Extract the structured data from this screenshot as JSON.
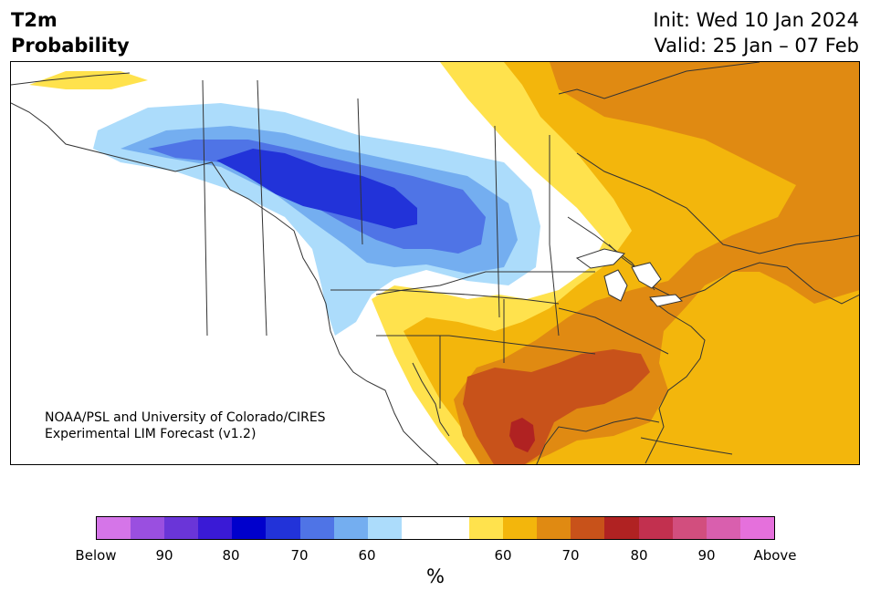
{
  "title": {
    "line1": "T2m",
    "line2": "Probability"
  },
  "init": {
    "line1": "Init: Wed 10 Jan 2024",
    "line2": "Valid: 25 Jan – 07 Feb"
  },
  "credit": {
    "line1": "NOAA/PSL and University of Colorado/CIRES",
    "line2": "Experimental LIM Forecast (v1.2)"
  },
  "colorbar": {
    "unit": "%",
    "colors": [
      "#d575e8",
      "#9a4fe0",
      "#6a35d8",
      "#3a1ad6",
      "#0000cc",
      "#2233d9",
      "#4f74e6",
      "#74aef0",
      "#acdcfb",
      "#ffffff",
      "#ffffff",
      "#ffe24d",
      "#f3b60c",
      "#e08a12",
      "#c8521a",
      "#b02222",
      "#c2304f",
      "#d24e7e",
      "#d95fae",
      "#e570dc"
    ],
    "tick_labels": [
      "Below",
      "90",
      "80",
      "70",
      "60",
      "60",
      "70",
      "80",
      "90",
      "Above"
    ]
  },
  "map": {
    "categories": {
      "below_60": "#acdcfb",
      "below_70": "#74aef0",
      "below_80": "#4f74e6",
      "below_90": "#2233d9",
      "above_60": "#ffe24d",
      "above_70": "#f3b60c",
      "above_80": "#e08a12",
      "above_90": "#c8521a",
      "above_max": "#b02222"
    },
    "line_color": "#333333"
  }
}
